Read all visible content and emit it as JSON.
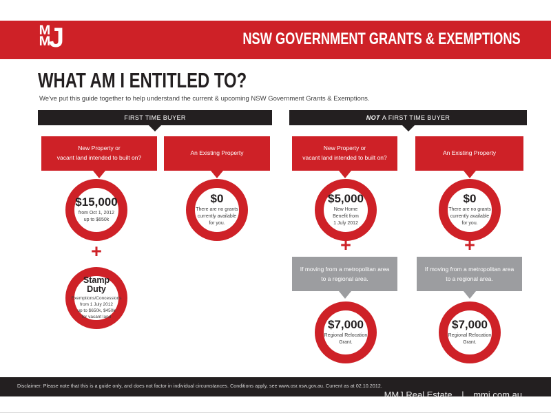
{
  "colors": {
    "red": "#ce2127",
    "black": "#231f20",
    "gray": "#9c9da0"
  },
  "header": {
    "logo": {
      "letter_m1": "M",
      "letter_m2": "M",
      "letter_j": "J"
    },
    "title": "NSW GOVERNMENT GRANTS & EXEMPTIONS"
  },
  "intro": {
    "title": "WHAT AM I ENTITLED TO?",
    "subtitle": "We've put this guide together to help understand the current & upcoming NSW Government Grants & Exemptions."
  },
  "first_time_buyer": {
    "banner": "FIRST TIME BUYER",
    "new_property": {
      "question": [
        "New  Property or",
        "vacant land intended to built on?"
      ],
      "grant": {
        "amount": "$15,000",
        "details": [
          "from Oct 1, 2012",
          "up to $650k"
        ]
      },
      "plus": "+",
      "stamp_duty": {
        "title": "Stamp Duty",
        "details": [
          "Exemptions/Concessions",
          "from 1 July 2012",
          "up to $650k, $450k",
          "for vacant land"
        ]
      }
    },
    "existing_property": {
      "question": [
        "An Existing Property"
      ],
      "grant": {
        "amount": "$0",
        "details": [
          "There are no grants",
          "currently available",
          "for you."
        ]
      }
    }
  },
  "not_first_time_buyer": {
    "banner_emphasis": "NOT",
    "banner_rest": "A FIRST TIME BUYER",
    "new_property": {
      "question": [
        "New  Property or",
        "vacant land intended to built on?"
      ],
      "grant": {
        "amount": "$5,000",
        "details": [
          "New Home",
          "Benefit from",
          "1 July 2012"
        ]
      },
      "plus": "+",
      "condition": [
        "If moving from a metropolitan area",
        "to a regional area."
      ],
      "relocation_grant": {
        "amount": "$7,000",
        "details": [
          "Regional Relocation",
          "Grant."
        ]
      }
    },
    "existing_property": {
      "question": [
        "An Existing Property"
      ],
      "grant": {
        "amount": "$0",
        "details": [
          "There are no grants",
          "currently available",
          "for you."
        ]
      },
      "plus": "+",
      "condition": [
        "If moving from a metropolitan area",
        "to a regional area."
      ],
      "relocation_grant": {
        "amount": "$7,000",
        "details": [
          "Regional Relocation",
          "Grant."
        ]
      }
    }
  },
  "footer": {
    "disclaimer": "Disclaimer: Please note that this is a guide only, and does not factor in individual circumstances. Conditions apply, see www.osr.nsw.gov.au. Current as at 02.10.2012.",
    "brand": "MMJ Real Estate",
    "divider": "|",
    "website": "mmj.com.au"
  }
}
